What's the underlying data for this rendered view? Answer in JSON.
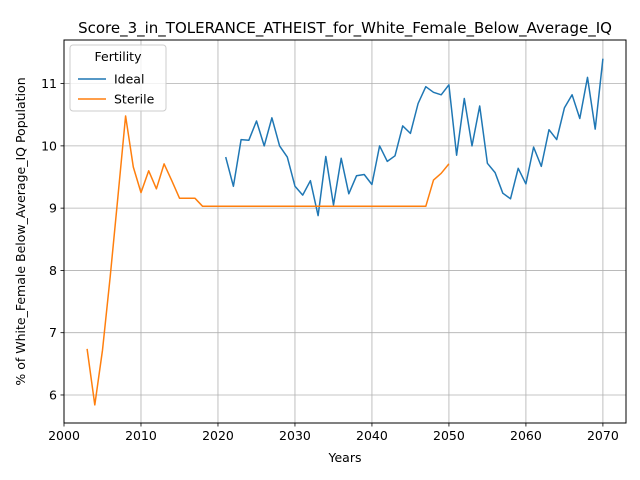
{
  "chart_data": {
    "type": "line",
    "title": "Score_3_in_TOLERANCE_ATHEIST_for_White_Female_Below_Average_IQ",
    "xlabel": "Years",
    "ylabel": "% of White_Female Below_Average_IQ Population",
    "xlim": [
      2000,
      2073
    ],
    "ylim": [
      5.55,
      11.7
    ],
    "xticks": [
      2000,
      2010,
      2020,
      2030,
      2040,
      2050,
      2060,
      2070
    ],
    "yticks": [
      6,
      7,
      8,
      9,
      10,
      11
    ],
    "grid": true,
    "legend": {
      "title": "Fertility",
      "position": "top-left"
    },
    "series": [
      {
        "name": "Ideal",
        "color": "#1f77b4",
        "x": [
          2021,
          2022,
          2023,
          2024,
          2025,
          2026,
          2027,
          2028,
          2029,
          2030,
          2031,
          2032,
          2033,
          2034,
          2035,
          2036,
          2037,
          2038,
          2039,
          2040,
          2041,
          2042,
          2043,
          2044,
          2045,
          2046,
          2047,
          2048,
          2049,
          2050,
          2051,
          2052,
          2053,
          2054,
          2055,
          2056,
          2057,
          2058,
          2059,
          2060,
          2061,
          2062,
          2063,
          2064,
          2065,
          2066,
          2067,
          2068,
          2069,
          2070
        ],
        "y": [
          9.82,
          9.35,
          10.1,
          10.09,
          10.4,
          10.0,
          10.45,
          10.0,
          9.82,
          9.35,
          9.21,
          9.44,
          8.88,
          9.83,
          9.05,
          9.8,
          9.23,
          9.52,
          9.54,
          9.38,
          10.0,
          9.75,
          9.84,
          10.32,
          10.2,
          10.68,
          10.95,
          10.86,
          10.82,
          10.98,
          9.85,
          10.76,
          10.0,
          10.64,
          9.72,
          9.57,
          9.24,
          9.15,
          9.64,
          9.39,
          9.98,
          9.67,
          10.26,
          10.1,
          10.61,
          10.82,
          10.44,
          11.1,
          10.27,
          11.4
        ]
      },
      {
        "name": "Sterile",
        "color": "#ff7f0e",
        "x": [
          2003,
          2004,
          2005,
          2006,
          2007,
          2008,
          2009,
          2010,
          2011,
          2012,
          2013,
          2014,
          2015,
          2016,
          2017,
          2018,
          2019,
          2020,
          2021,
          2022,
          2023,
          2024,
          2025,
          2026,
          2027,
          2028,
          2029,
          2030,
          2031,
          2032,
          2033,
          2034,
          2035,
          2036,
          2037,
          2038,
          2039,
          2040,
          2041,
          2042,
          2043,
          2044,
          2045,
          2046,
          2047,
          2048,
          2049,
          2050
        ],
        "y": [
          6.74,
          5.84,
          6.72,
          7.9,
          9.18,
          10.48,
          9.66,
          9.25,
          9.6,
          9.31,
          9.71,
          9.44,
          9.16,
          9.16,
          9.16,
          9.03,
          9.03,
          9.03,
          9.03,
          9.03,
          9.03,
          9.03,
          9.03,
          9.03,
          9.03,
          9.03,
          9.03,
          9.03,
          9.03,
          9.03,
          9.03,
          9.03,
          9.03,
          9.03,
          9.03,
          9.03,
          9.03,
          9.03,
          9.03,
          9.03,
          9.03,
          9.03,
          9.03,
          9.03,
          9.03,
          9.45,
          9.56,
          9.71
        ]
      }
    ]
  }
}
